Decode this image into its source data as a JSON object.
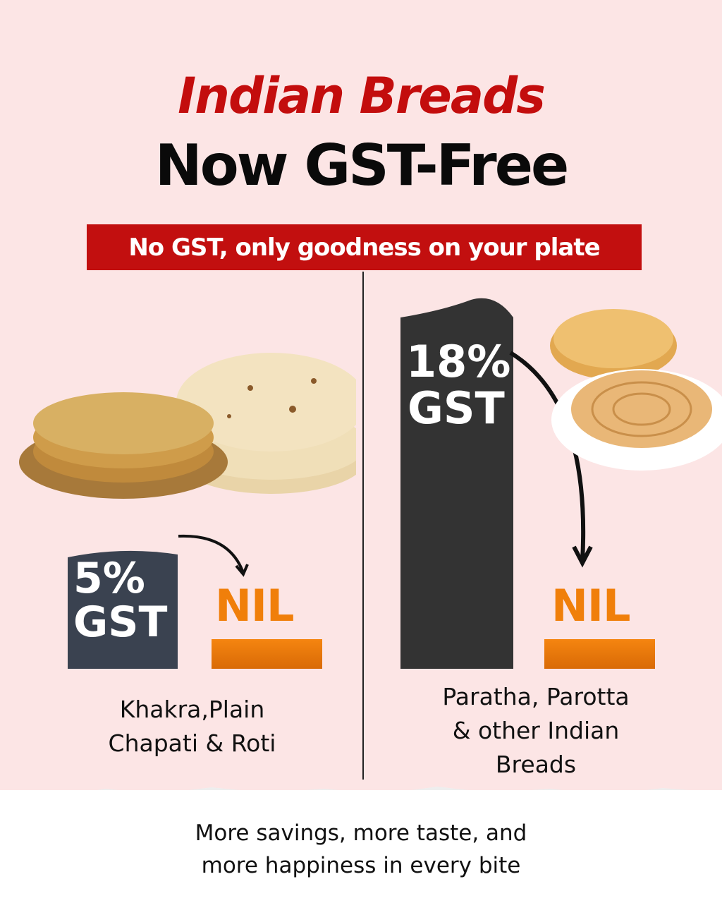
{
  "header": {
    "title_line1": "Indian Breads",
    "title_line2": "Now GST-Free",
    "banner": "No GST, only goodness on your plate"
  },
  "left": {
    "old_rate_pct": "5%",
    "old_rate_label": "GST",
    "new_rate": "NIL",
    "caption_line1": "Khakra,Plain",
    "caption_line2": "Chapati & Roti",
    "images": [
      "khakra-stack",
      "chapati-roti-stack"
    ]
  },
  "right": {
    "old_rate_pct": "18%",
    "old_rate_label": "GST",
    "new_rate": "NIL",
    "caption_line1": "Paratha, Parotta",
    "caption_line2": "& other Indian",
    "caption_line3": "Breads",
    "images": [
      "paratha-stack",
      "parotta-plate"
    ]
  },
  "footer": {
    "line1": "More savings, more taste, and",
    "line2": "more happiness in every bite"
  },
  "colors": {
    "background": "#fce5e5",
    "title_red": "#c30d0d",
    "banner_red": "#c20f0f",
    "nil_orange": "#f07f0a",
    "bar_5pct": "#3a4250",
    "bar_18pct": "#333333"
  }
}
